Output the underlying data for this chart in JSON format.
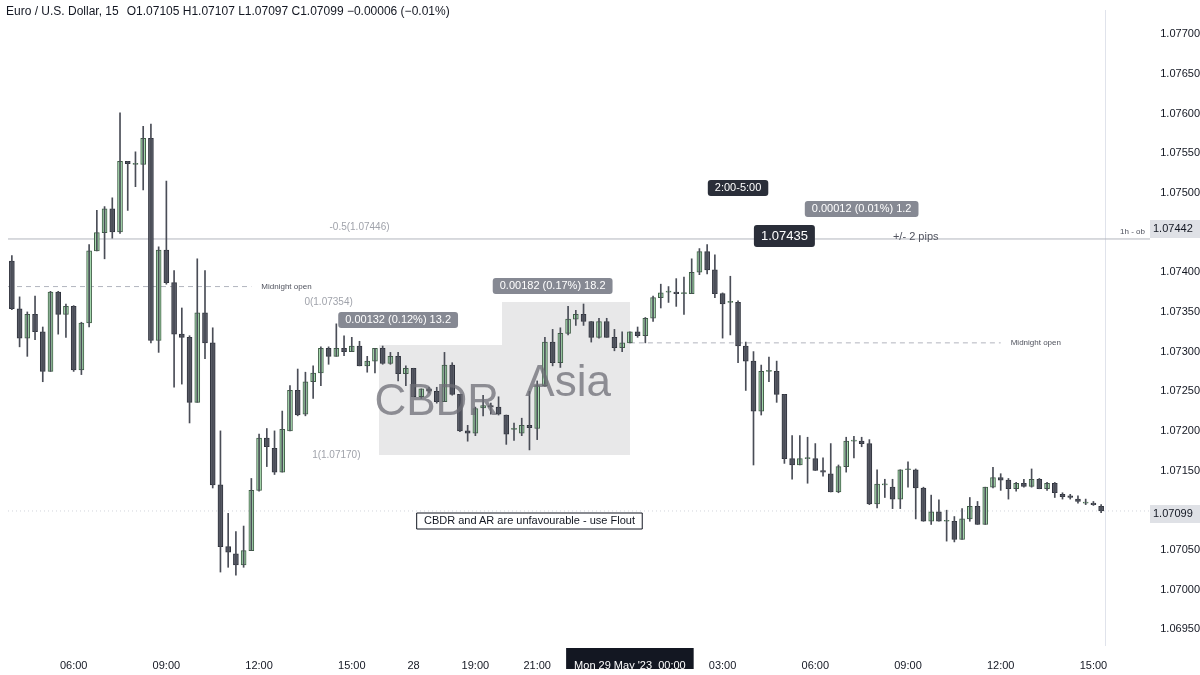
{
  "chart_data": {
    "type": "candlestick",
    "title": "Euro / U.S. Dollar, 15",
    "subtitle": "O1.07105 H1.07107 L1.07097 C1.07099 −0.00006 (−0.01%)",
    "categories": [
      null,
      null,
      null,
      null,
      null,
      null,
      null,
      null,
      "06:00",
      null,
      null,
      null,
      null,
      null,
      null,
      null,
      null,
      null,
      null,
      null,
      "09:00",
      null,
      null,
      null,
      null,
      null,
      null,
      null,
      null,
      null,
      null,
      null,
      "12:00",
      null,
      null,
      null,
      null,
      null,
      null,
      null,
      null,
      null,
      null,
      null,
      "15:00",
      null,
      null,
      null,
      null,
      null,
      null,
      null,
      "28",
      null,
      null,
      null,
      null,
      null,
      null,
      null,
      "19:00",
      null,
      null,
      null,
      null,
      null,
      null,
      null,
      "21:00",
      null,
      null,
      null,
      null,
      null,
      null,
      null,
      null,
      null,
      null,
      null,
      "Mon 29 May '23  00:00",
      null,
      null,
      null,
      null,
      null,
      null,
      null,
      null,
      null,
      null,
      null,
      "03:00",
      null,
      null,
      null,
      null,
      null,
      null,
      null,
      null,
      null,
      null,
      null,
      "06:00",
      null,
      null,
      null,
      null,
      null,
      null,
      null,
      null,
      null,
      null,
      null,
      "09:00",
      null,
      null,
      null,
      null,
      null,
      null,
      null,
      null,
      null,
      null,
      null,
      "12:00",
      null,
      null,
      null,
      null,
      null,
      null,
      null,
      null,
      null,
      null,
      null,
      "15:00",
      null
    ],
    "ohlc": [
      [
        1.07414,
        1.07421,
        1.07353,
        1.07354
      ],
      [
        1.07354,
        1.07369,
        1.07306,
        1.07317
      ],
      [
        1.07317,
        1.0735,
        1.07294,
        1.07347
      ],
      [
        1.07347,
        1.0737,
        1.07315,
        1.07325
      ],
      [
        1.07325,
        1.07331,
        1.07262,
        1.07275
      ],
      [
        1.07275,
        1.07376,
        1.07275,
        1.07375
      ],
      [
        1.07375,
        1.07376,
        1.07322,
        1.07347
      ],
      [
        1.07347,
        1.0736,
        1.07318,
        1.07357
      ],
      [
        1.07357,
        1.07358,
        1.07275,
        1.07277
      ],
      [
        1.07277,
        1.07337,
        1.07271,
        1.07336
      ],
      [
        1.07336,
        1.07435,
        1.07331,
        1.07427
      ],
      [
        1.07427,
        1.07478,
        1.07427,
        1.0745
      ],
      [
        1.0745,
        1.07483,
        1.07417,
        1.0748
      ],
      [
        1.0748,
        1.07494,
        1.07443,
        1.07451
      ],
      [
        1.07451,
        1.07601,
        1.07449,
        1.0754
      ],
      [
        1.0754,
        1.0754,
        1.07478,
        1.07537
      ],
      [
        1.07536,
        1.07552,
        1.07508,
        1.07536
      ],
      [
        1.07536,
        1.07584,
        1.07504,
        1.07569
      ],
      [
        1.07569,
        1.07587,
        1.07311,
        1.07314
      ],
      [
        1.07314,
        1.07432,
        1.07299,
        1.07428
      ],
      [
        1.07428,
        1.07515,
        1.07385,
        1.07387
      ],
      [
        1.07387,
        1.07402,
        1.07255,
        1.07322
      ],
      [
        1.07322,
        1.07355,
        1.07259,
        1.07318
      ],
      [
        1.07318,
        1.0732,
        1.0721,
        1.07236
      ],
      [
        1.07236,
        1.07417,
        1.07236,
        1.07349
      ],
      [
        1.07349,
        1.07402,
        1.07291,
        1.07311
      ],
      [
        1.07311,
        1.0733,
        1.07128,
        1.07132
      ],
      [
        1.07132,
        1.072,
        1.07022,
        1.07054
      ],
      [
        1.07054,
        1.07096,
        1.07028,
        1.07047
      ],
      [
        1.07045,
        1.07073,
        1.07018,
        1.07031
      ],
      [
        1.07031,
        1.0708,
        1.07028,
        1.07049
      ],
      [
        1.07049,
        1.0714,
        1.07049,
        1.07125
      ],
      [
        1.07125,
        1.07196,
        1.07124,
        1.07191
      ],
      [
        1.07191,
        1.07203,
        1.07155,
        1.0718
      ],
      [
        1.07178,
        1.072,
        1.07145,
        1.07148
      ],
      [
        1.07148,
        1.07225,
        1.07148,
        1.07202
      ],
      [
        1.072,
        1.07257,
        1.072,
        1.07251
      ],
      [
        1.07251,
        1.07278,
        1.07219,
        1.0722
      ],
      [
        1.07221,
        1.07274,
        1.07219,
        1.07262
      ],
      [
        1.07262,
        1.07282,
        1.07241,
        1.07273
      ],
      [
        1.07273,
        1.07306,
        1.07257,
        1.07304
      ],
      [
        1.07304,
        1.07306,
        1.07284,
        1.07294
      ],
      [
        1.07294,
        1.07335,
        1.07294,
        1.07304
      ],
      [
        1.07304,
        1.0732,
        1.07295,
        1.073
      ],
      [
        1.073,
        1.07318,
        1.073,
        1.07307
      ],
      [
        1.07307,
        1.07313,
        1.07282,
        1.07282
      ],
      [
        1.07282,
        1.07294,
        1.07274,
        1.07288
      ],
      [
        1.07288,
        1.07304,
        1.07273,
        1.07304
      ],
      [
        1.07304,
        1.07307,
        1.07284,
        1.07285
      ],
      [
        1.07285,
        1.07299,
        1.07284,
        1.07294
      ],
      [
        1.07294,
        1.07299,
        1.07263,
        1.07272
      ],
      [
        1.07272,
        1.07282,
        1.07257,
        1.07279
      ],
      [
        1.07279,
        1.07279,
        1.07243,
        1.07243
      ],
      [
        1.07243,
        1.07253,
        1.07241,
        1.07253
      ],
      [
        1.07253,
        1.07255,
        1.07248,
        1.0725
      ],
      [
        1.0725,
        1.07255,
        1.07235,
        1.07237
      ],
      [
        1.07237,
        1.07299,
        1.07237,
        1.07283
      ],
      [
        1.07283,
        1.07286,
        1.07245,
        1.07246
      ],
      [
        1.07246,
        1.07246,
        1.07199,
        1.072
      ],
      [
        1.072,
        1.07207,
        1.07187,
        1.07197
      ],
      [
        1.07197,
        1.0723,
        1.07194,
        1.07228
      ],
      [
        1.07229,
        1.07245,
        1.07219,
        1.07232
      ],
      [
        1.07232,
        1.07235,
        1.07221,
        1.0723
      ],
      [
        1.0723,
        1.07243,
        1.0722,
        1.07221
      ],
      [
        1.0722,
        1.0722,
        1.07183,
        1.07196
      ],
      [
        1.07202,
        1.0721,
        1.07188,
        1.07202
      ],
      [
        1.07197,
        1.07216,
        1.07194,
        1.07207
      ],
      [
        1.07207,
        1.0725,
        1.07176,
        1.07204
      ],
      [
        1.07203,
        1.07263,
        1.07189,
        1.07257
      ],
      [
        1.07257,
        1.07318,
        1.07256,
        1.07312
      ],
      [
        1.07312,
        1.07328,
        1.07282,
        1.07286
      ],
      [
        1.07286,
        1.0733,
        1.0728,
        1.07323
      ],
      [
        1.07323,
        1.07357,
        1.07321,
        1.07341
      ],
      [
        1.07341,
        1.07352,
        1.07333,
        1.07347
      ],
      [
        1.07347,
        1.0736,
        1.07333,
        1.07338
      ],
      [
        1.07338,
        1.07338,
        1.07312,
        1.07318
      ],
      [
        1.07318,
        1.07342,
        1.07317,
        1.07338
      ],
      [
        1.07338,
        1.07342,
        1.07318,
        1.07318
      ],
      [
        1.07318,
        1.07328,
        1.07301,
        1.07305
      ],
      [
        1.07305,
        1.07325,
        1.073,
        1.07311
      ],
      [
        1.07311,
        1.07325,
        1.07311,
        1.07325
      ],
      [
        1.07325,
        1.07331,
        1.07318,
        1.0732
      ],
      [
        1.0732,
        1.07343,
        1.07311,
        1.07342
      ],
      [
        1.07342,
        1.0737,
        1.07338,
        1.07368
      ],
      [
        1.07368,
        1.07385,
        1.07355,
        1.07374
      ],
      [
        1.07375,
        1.07382,
        1.07362,
        1.07375
      ],
      [
        1.07375,
        1.07392,
        1.07357,
        1.07373
      ],
      [
        1.07373,
        1.07394,
        1.07347,
        1.07373
      ],
      [
        1.07373,
        1.07417,
        1.07373,
        1.074
      ],
      [
        1.074,
        1.0743,
        1.07397,
        1.07426
      ],
      [
        1.07426,
        1.07435,
        1.07398,
        1.07403
      ],
      [
        1.07403,
        1.07422,
        1.07368,
        1.07373
      ],
      [
        1.07373,
        1.07374,
        1.07317,
        1.0736
      ],
      [
        1.07362,
        1.07395,
        1.07321,
        1.07362
      ],
      [
        1.07362,
        1.07364,
        1.07286,
        1.07307
      ],
      [
        1.07307,
        1.07312,
        1.07251,
        1.07288
      ],
      [
        1.07288,
        1.073,
        1.07157,
        1.07225
      ],
      [
        1.07225,
        1.07283,
        1.0722,
        1.07275
      ],
      [
        1.07275,
        1.07293,
        1.07262,
        1.07275
      ],
      [
        1.07275,
        1.07288,
        1.07236,
        1.07246
      ],
      [
        1.07246,
        1.07246,
        1.07159,
        1.07165
      ],
      [
        1.07165,
        1.07194,
        1.07139,
        1.07157
      ],
      [
        1.07157,
        1.07194,
        1.07157,
        1.07165
      ],
      [
        1.07165,
        1.07192,
        1.07134,
        1.07165
      ],
      [
        1.07165,
        1.07184,
        1.0715,
        1.0715
      ],
      [
        1.0715,
        1.07166,
        1.07143,
        1.07148
      ],
      [
        1.07146,
        1.07184,
        1.07123,
        1.07123
      ],
      [
        1.07123,
        1.07157,
        1.07122,
        1.07155
      ],
      [
        1.07155,
        1.07192,
        1.07148,
        1.07187
      ],
      [
        1.07187,
        1.07193,
        1.07166,
        1.07187
      ],
      [
        1.07187,
        1.07192,
        1.0718,
        1.07184
      ],
      [
        1.07184,
        1.07189,
        1.07107,
        1.07108
      ],
      [
        1.07108,
        1.07151,
        1.07103,
        1.07133
      ],
      [
        1.07132,
        1.07139,
        1.07116,
        1.07132
      ],
      [
        1.07129,
        1.07139,
        1.07102,
        1.07114
      ],
      [
        1.07114,
        1.07151,
        1.07102,
        1.07151
      ],
      [
        1.07151,
        1.07161,
        1.07129,
        1.07151
      ],
      [
        1.07151,
        1.07152,
        1.07089,
        1.07128
      ],
      [
        1.07128,
        1.07129,
        1.07086,
        1.07086
      ],
      [
        1.07086,
        1.07119,
        1.07082,
        1.07098
      ],
      [
        1.07098,
        1.07113,
        1.07086,
        1.07086
      ],
      [
        1.07086,
        1.071,
        1.07061,
        1.07086
      ],
      [
        1.07086,
        1.07092,
        1.0706,
        1.07063
      ],
      [
        1.07063,
        1.07102,
        1.07063,
        1.07089
      ],
      [
        1.07089,
        1.07116,
        1.07086,
        1.07105
      ],
      [
        1.07105,
        1.07111,
        1.07082,
        1.07082
      ],
      [
        1.07082,
        1.07129,
        1.07082,
        1.07129
      ],
      [
        1.07129,
        1.07154,
        1.07128,
        1.07141
      ],
      [
        1.07141,
        1.07146,
        1.07125,
        1.07138
      ],
      [
        1.07138,
        1.0714,
        1.07114,
        1.07127
      ],
      [
        1.07127,
        1.07135,
        1.07124,
        1.07134
      ],
      [
        1.07134,
        1.07139,
        1.07129,
        1.0713
      ],
      [
        1.0713,
        1.07152,
        1.07129,
        1.07139
      ],
      [
        1.07139,
        1.0714,
        1.07127,
        1.07127
      ],
      [
        1.07127,
        1.07135,
        1.07125,
        1.07134
      ],
      [
        1.07134,
        1.07135,
        1.07116,
        1.07122
      ],
      [
        1.0712,
        1.07122,
        1.07114,
        1.07117
      ],
      [
        1.07118,
        1.0712,
        1.07114,
        1.07116
      ],
      [
        1.07114,
        1.07118,
        1.07109,
        1.07111
      ],
      [
        1.07109,
        1.07114,
        1.07107,
        1.07109
      ],
      [
        1.07109,
        1.07111,
        1.07106,
        1.07107
      ],
      [
        1.07105,
        1.07107,
        1.07097,
        1.07099
      ]
    ],
    "ylim": [
      1.0693,
      1.0773
    ],
    "yticks": [
      {
        "value": 1.0695,
        "label": "1.06950"
      },
      {
        "value": 1.07,
        "label": "1.07000"
      },
      {
        "value": 1.0705,
        "label": "1.07050"
      },
      {
        "value": 1.0715,
        "label": "1.07150"
      },
      {
        "value": 1.072,
        "label": "1.07200"
      },
      {
        "value": 1.0725,
        "label": "1.07250"
      },
      {
        "value": 1.073,
        "label": "1.07300"
      },
      {
        "value": 1.0735,
        "label": "1.07350"
      },
      {
        "value": 1.074,
        "label": "1.07400"
      },
      {
        "value": 1.075,
        "label": "1.07500"
      },
      {
        "value": 1.0755,
        "label": "1.07550"
      },
      {
        "value": 1.076,
        "label": "1.07600"
      },
      {
        "value": 1.0765,
        "label": "1.07650"
      },
      {
        "value": 1.077,
        "label": "1.07700"
      }
    ],
    "ref_lines": [
      {
        "axis": "y",
        "value": 1.07382,
        "label": "Midnight open",
        "color": "#b2b5be",
        "line_style": "dashed"
      },
      {
        "axis": "y",
        "value": 1.07311,
        "label": "Midnight open",
        "color": "#b2b5be",
        "line_style": "dashed"
      },
      {
        "axis": "y",
        "value": 1.07442,
        "label": "1h - ob",
        "color": "#b2b5be",
        "line_style": "solid"
      },
      {
        "axis": "y",
        "value": 1.07099,
        "color": "#d1d4dc",
        "line_style": "dotted"
      }
    ],
    "annotations": [
      "0.00132 (0.12%) 13.2",
      "0.00182 (0.17%) 18.2",
      "0.00012 (0.01%) 1.2",
      "2:00-5:00",
      "1.07435",
      "+/- 2 pips",
      "CBDR and AR are unfavourable - use Flout",
      "-0.5(1.07446)",
      "0(1.07354)",
      "1(1.07170)",
      "CBDR",
      "Asia",
      "1.07442",
      "1.07099"
    ]
  }
}
